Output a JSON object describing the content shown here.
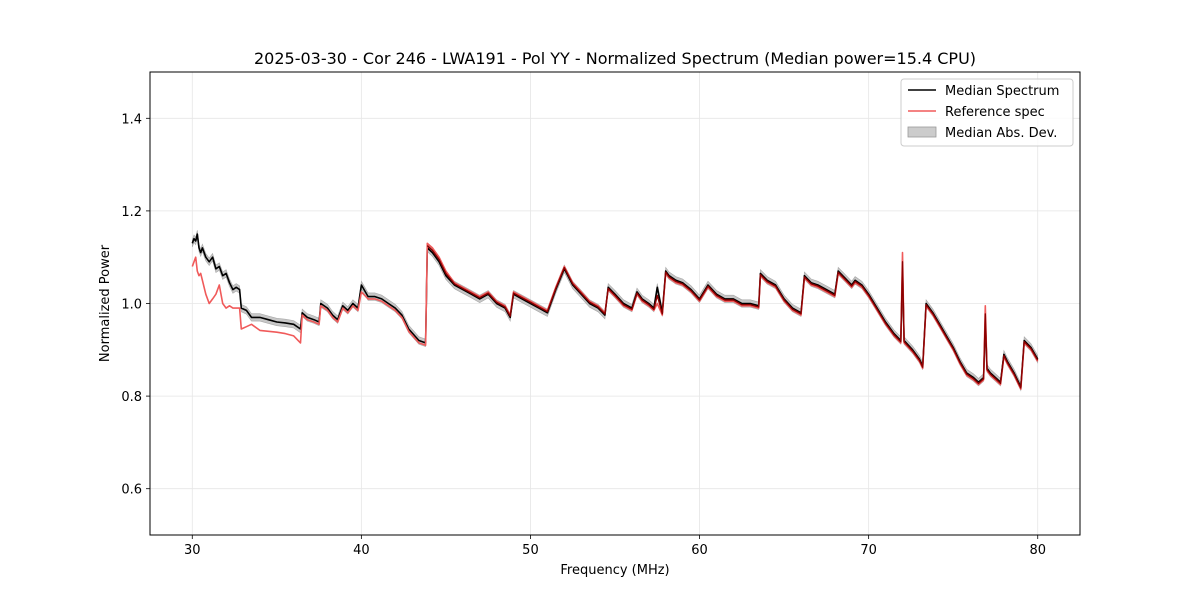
{
  "chart_data": {
    "type": "line",
    "title": "2025-03-30 - Cor 246 - LWA191 - Pol YY - Normalized Spectrum (Median power=15.4 CPU)",
    "xlabel": "Frequency (MHz)",
    "ylabel": "Normalized Power",
    "xlim": [
      27.5,
      82.5
    ],
    "ylim": [
      0.5,
      1.5
    ],
    "xticks": [
      30,
      40,
      50,
      60,
      70,
      80
    ],
    "yticks": [
      0.6,
      0.8,
      1.0,
      1.2,
      1.4
    ],
    "xtick_labels": [
      "30",
      "40",
      "50",
      "60",
      "70",
      "80"
    ],
    "ytick_labels": [
      "0.6",
      "0.8",
      "1.0",
      "1.2",
      "1.4"
    ],
    "grid": true,
    "legend_position": "top-right",
    "legend": [
      "Median Spectrum",
      "Reference spec",
      "Median Abs. Dev."
    ],
    "colors": {
      "median": "#000000",
      "reference": "#f05a5a",
      "overlap": "#8b0000",
      "mad": "#b0b0b0"
    },
    "mad_halfwidth": 0.008,
    "series": [
      {
        "name": "Median Spectrum",
        "x": [
          30.0,
          30.1,
          30.2,
          30.3,
          30.4,
          30.5,
          30.6,
          30.8,
          31.0,
          31.2,
          31.4,
          31.6,
          31.8,
          32.0,
          32.2,
          32.4,
          32.6,
          32.8,
          32.9,
          33.2,
          33.5,
          34.0,
          34.5,
          35.0,
          35.5,
          36.0,
          36.4,
          36.5,
          36.8,
          37.2,
          37.5,
          37.6,
          38.0,
          38.3,
          38.6,
          38.9,
          39.2,
          39.5,
          39.8,
          40.0,
          40.4,
          40.8,
          41.2,
          41.6,
          42.0,
          42.4,
          42.8,
          43.4,
          43.8,
          43.9,
          44.2,
          44.6,
          45.0,
          45.5,
          46.0,
          46.5,
          47.0,
          47.5,
          48.0,
          48.5,
          48.8,
          49.0,
          49.5,
          50.0,
          50.5,
          51.0,
          51.5,
          52.0,
          52.5,
          53.0,
          53.5,
          54.0,
          54.4,
          54.6,
          55.0,
          55.5,
          56.0,
          56.3,
          56.6,
          57.0,
          57.3,
          57.5,
          57.8,
          58.0,
          58.2,
          58.6,
          59.0,
          59.5,
          60.0,
          60.5,
          61.0,
          61.5,
          62.0,
          62.5,
          63.0,
          63.5,
          63.6,
          64.0,
          64.5,
          65.0,
          65.5,
          66.0,
          66.2,
          66.6,
          67.0,
          67.5,
          68.0,
          68.2,
          68.6,
          69.0,
          69.2,
          69.6,
          70.0,
          70.5,
          71.0,
          71.5,
          71.9,
          72.0,
          72.1,
          72.6,
          73.0,
          73.2,
          73.4,
          73.8,
          74.2,
          74.6,
          75.0,
          75.4,
          75.8,
          76.2,
          76.5,
          76.8,
          76.9,
          77.0,
          77.2,
          77.5,
          77.8,
          78.0,
          78.2,
          78.6,
          79.0,
          79.2,
          79.6,
          80.0
        ],
        "y": [
          1.13,
          1.14,
          1.135,
          1.15,
          1.12,
          1.11,
          1.12,
          1.1,
          1.09,
          1.1,
          1.075,
          1.08,
          1.06,
          1.065,
          1.045,
          1.03,
          1.035,
          1.03,
          0.99,
          0.985,
          0.97,
          0.97,
          0.965,
          0.96,
          0.958,
          0.955,
          0.945,
          0.98,
          0.97,
          0.965,
          0.96,
          1.0,
          0.99,
          0.975,
          0.965,
          0.995,
          0.985,
          1.0,
          0.99,
          1.04,
          1.015,
          1.015,
          1.01,
          1.0,
          0.99,
          0.975,
          0.945,
          0.92,
          0.915,
          1.12,
          1.11,
          1.09,
          1.06,
          1.04,
          1.03,
          1.02,
          1.01,
          1.02,
          1.0,
          0.99,
          0.97,
          1.02,
          1.01,
          1.0,
          0.99,
          0.98,
          1.03,
          1.075,
          1.04,
          1.02,
          1.0,
          0.99,
          0.975,
          1.035,
          1.02,
          1.0,
          0.99,
          1.025,
          1.01,
          1.0,
          0.99,
          1.035,
          0.98,
          1.07,
          1.06,
          1.05,
          1.045,
          1.03,
          1.01,
          1.04,
          1.02,
          1.01,
          1.01,
          1.0,
          1.0,
          0.995,
          1.065,
          1.05,
          1.04,
          1.01,
          0.99,
          0.98,
          1.06,
          1.045,
          1.04,
          1.03,
          1.02,
          1.07,
          1.055,
          1.04,
          1.05,
          1.04,
          1.02,
          0.99,
          0.96,
          0.935,
          0.92,
          1.07,
          0.92,
          0.9,
          0.88,
          0.865,
          1.0,
          0.98,
          0.955,
          0.93,
          0.905,
          0.875,
          0.85,
          0.84,
          0.83,
          0.84,
          0.96,
          0.86,
          0.85,
          0.84,
          0.83,
          0.89,
          0.875,
          0.85,
          0.82,
          0.92,
          0.905,
          0.88
        ]
      },
      {
        "name": "Reference spec",
        "x": [
          30.0,
          30.1,
          30.2,
          30.3,
          30.4,
          30.5,
          30.6,
          30.8,
          31.0,
          31.2,
          31.4,
          31.6,
          31.8,
          32.0,
          32.2,
          32.4,
          32.6,
          32.8,
          32.9,
          33.2,
          33.5,
          34.0,
          34.5,
          35.0,
          35.5,
          36.0,
          36.4,
          36.5,
          36.8,
          37.2,
          37.5,
          37.6,
          38.0,
          38.3,
          38.6,
          38.9,
          39.2,
          39.5,
          39.8,
          40.0,
          40.4,
          40.8,
          41.2,
          41.6,
          42.0,
          42.4,
          42.8,
          43.4,
          43.8,
          43.9,
          44.2,
          44.6,
          45.0,
          45.5,
          46.0,
          46.5,
          47.0,
          47.5,
          48.0,
          48.5,
          48.8,
          49.0,
          49.5,
          50.0,
          50.5,
          51.0,
          51.5,
          52.0,
          52.5,
          53.0,
          53.5,
          54.0,
          54.4,
          54.6,
          55.0,
          55.5,
          56.0,
          56.3,
          56.6,
          57.0,
          57.3,
          57.5,
          57.8,
          58.0,
          58.2,
          58.6,
          59.0,
          59.5,
          60.0,
          60.5,
          61.0,
          61.5,
          62.0,
          62.5,
          63.0,
          63.5,
          63.6,
          64.0,
          64.5,
          65.0,
          65.5,
          66.0,
          66.2,
          66.6,
          67.0,
          67.5,
          68.0,
          68.2,
          68.6,
          69.0,
          69.2,
          69.6,
          70.0,
          70.5,
          71.0,
          71.5,
          71.9,
          72.0,
          72.1,
          72.6,
          73.0,
          73.2,
          73.4,
          73.8,
          74.2,
          74.6,
          75.0,
          75.4,
          75.8,
          76.2,
          76.5,
          76.8,
          76.9,
          77.0,
          77.2,
          77.5,
          77.8,
          78.0,
          78.2,
          78.6,
          79.0,
          79.2,
          79.6,
          80.0
        ],
        "y": [
          1.08,
          1.09,
          1.1,
          1.07,
          1.06,
          1.065,
          1.05,
          1.02,
          1.0,
          1.01,
          1.02,
          1.04,
          1.0,
          0.99,
          0.995,
          0.99,
          0.99,
          0.99,
          0.945,
          0.95,
          0.955,
          0.942,
          0.94,
          0.938,
          0.935,
          0.93,
          0.915,
          0.975,
          0.965,
          0.96,
          0.955,
          0.995,
          0.985,
          0.97,
          0.96,
          0.99,
          0.98,
          0.995,
          0.985,
          1.025,
          1.01,
          1.01,
          1.005,
          0.995,
          0.985,
          0.97,
          0.94,
          0.915,
          0.91,
          1.13,
          1.12,
          1.1,
          1.07,
          1.045,
          1.035,
          1.025,
          1.015,
          1.025,
          1.005,
          0.995,
          0.975,
          1.025,
          1.015,
          1.005,
          0.995,
          0.985,
          1.035,
          1.08,
          1.045,
          1.025,
          1.005,
          0.995,
          0.98,
          1.03,
          1.015,
          0.995,
          0.985,
          1.02,
          1.005,
          0.995,
          0.985,
          1.0,
          0.975,
          1.065,
          1.055,
          1.045,
          1.04,
          1.025,
          1.005,
          1.035,
          1.015,
          1.005,
          1.005,
          0.995,
          0.995,
          0.99,
          1.06,
          1.045,
          1.035,
          1.005,
          0.985,
          0.975,
          1.055,
          1.04,
          1.035,
          1.025,
          1.015,
          1.065,
          1.05,
          1.035,
          1.045,
          1.035,
          1.015,
          0.985,
          0.955,
          0.93,
          0.915,
          1.11,
          0.915,
          0.895,
          0.875,
          0.86,
          0.995,
          0.975,
          0.95,
          0.925,
          0.9,
          0.87,
          0.845,
          0.835,
          0.825,
          0.835,
          0.995,
          0.855,
          0.845,
          0.835,
          0.825,
          0.885,
          0.87,
          0.845,
          0.815,
          0.915,
          0.9,
          0.875
        ]
      }
    ]
  }
}
